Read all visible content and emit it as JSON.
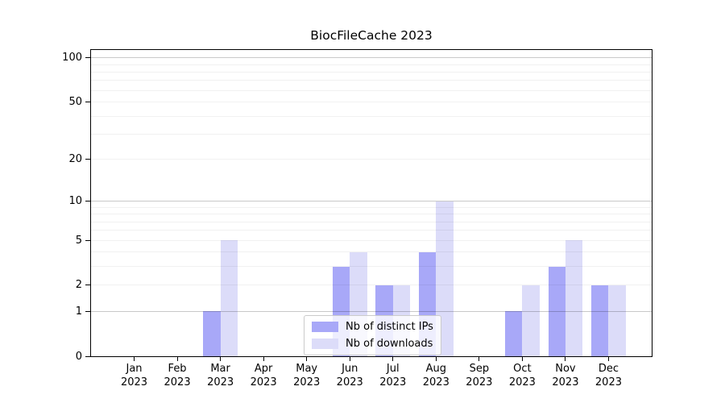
{
  "chart_data": {
    "type": "bar",
    "title": "BiocFileCache 2023",
    "categories": [
      "Jan",
      "Feb",
      "Mar",
      "Apr",
      "May",
      "Jun",
      "Jul",
      "Aug",
      "Sep",
      "Oct",
      "Nov",
      "Dec"
    ],
    "year_label": "2023",
    "series": [
      {
        "name": "Nb of distinct IPs",
        "color": "#a8a8f8",
        "values": [
          0,
          0,
          1,
          0,
          0,
          3,
          2,
          4,
          0,
          1,
          3,
          2
        ]
      },
      {
        "name": "Nb of downloads",
        "color": "#dcdcf9",
        "values": [
          0,
          0,
          5,
          0,
          0,
          4,
          2,
          10,
          0,
          2,
          5,
          2
        ]
      }
    ],
    "yscale": "log1p",
    "yticks": [
      0,
      1,
      2,
      5,
      10,
      20,
      50,
      100
    ],
    "ylim": [
      0,
      113
    ],
    "xlim": [
      -1,
      12
    ],
    "grid": {
      "major_at": [
        1,
        10,
        100
      ],
      "minor_at": [
        2,
        3,
        4,
        5,
        6,
        7,
        8,
        9,
        20,
        30,
        40,
        50,
        60,
        70,
        80,
        90
      ]
    },
    "legend_position": "lower center",
    "bar_width_units": 0.4
  }
}
